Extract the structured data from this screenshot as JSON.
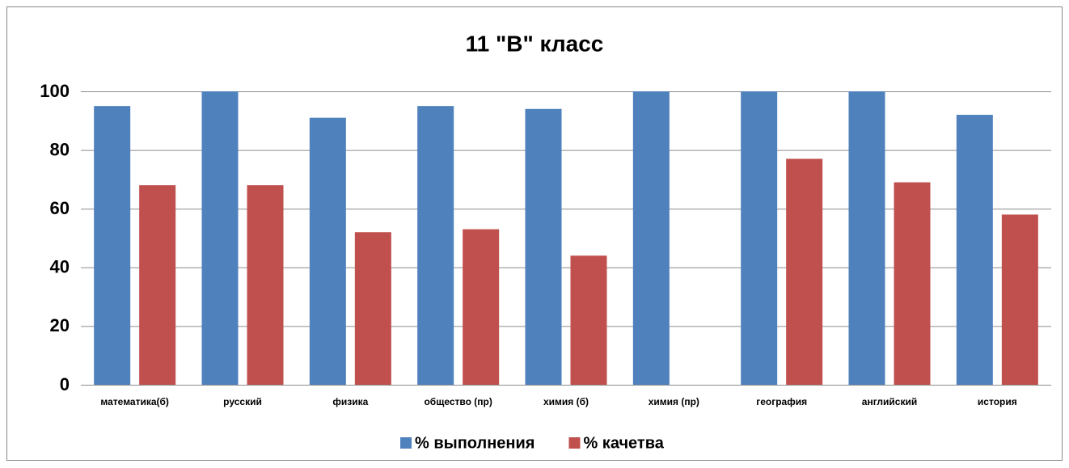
{
  "chart_data": {
    "type": "bar",
    "title": "11 \"В\" класс",
    "categories": [
      "математика(б)",
      "русский",
      "физика",
      "общество (пр)",
      "химия (б)",
      "химия (пр)",
      "география",
      "английский",
      "история"
    ],
    "series": [
      {
        "name": "% выполнения",
        "color": "#4f81bd",
        "values": [
          95,
          100,
          91,
          95,
          94,
          100,
          100,
          100,
          92
        ]
      },
      {
        "name": "% качетва",
        "color": "#c0504d",
        "values": [
          68,
          68,
          52,
          53,
          44,
          null,
          77,
          69,
          58
        ]
      }
    ],
    "ylim": [
      0,
      100
    ],
    "yticks": [
      0,
      20,
      40,
      60,
      80,
      100
    ],
    "grid": true,
    "legend": "bottom"
  }
}
